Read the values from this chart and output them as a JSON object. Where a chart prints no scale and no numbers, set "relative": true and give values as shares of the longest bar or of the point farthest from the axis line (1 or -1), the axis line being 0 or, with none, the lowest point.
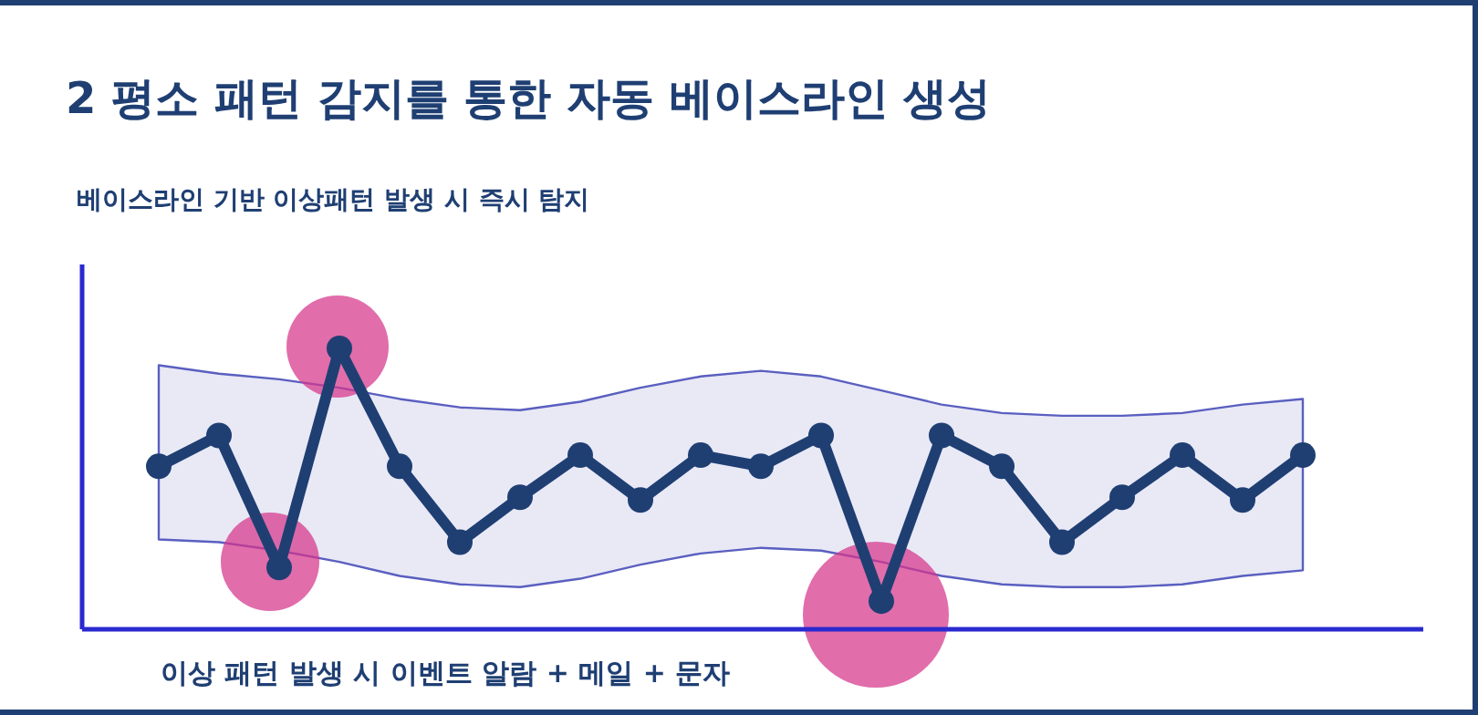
{
  "chart_data": {
    "type": "line",
    "title": "2 평소 패턴 감지를 통한 자동 베이스라인 생성",
    "subtitle": "베이스라인 기반 이상패턴 발생 시 즉시 탐지",
    "annotations": [
      "이상 패턴 발생 시 이벤트 알람 + 메일 + 문자"
    ],
    "relative": true,
    "marker": "circle",
    "categories": [
      null,
      null,
      null,
      null,
      null,
      null,
      null,
      null,
      null,
      null,
      null,
      null,
      null,
      null,
      null,
      null,
      null,
      null,
      null,
      null
    ],
    "series": [
      {
        "color": "#1f3f73",
        "values": [
          0.58,
          0.69,
          0.22,
          1,
          0.58,
          0.31,
          0.47,
          0.62,
          0.46,
          0.62,
          0.58,
          0.69,
          0.1,
          0.69,
          0.58,
          0.31,
          0.47,
          0.62,
          0.46,
          0.62
        ],
        "upper": [
          0.94,
          0.91,
          0.89,
          0.86,
          0.82,
          0.79,
          0.78,
          0.81,
          0.86,
          0.9,
          0.92,
          0.9,
          0.85,
          0.8,
          0.77,
          0.76,
          0.76,
          0.77,
          0.8,
          0.82
        ],
        "lower": [
          0.32,
          0.31,
          0.28,
          0.24,
          0.19,
          0.16,
          0.15,
          0.18,
          0.23,
          0.27,
          0.29,
          0.28,
          0.24,
          0.19,
          0.16,
          0.15,
          0.15,
          0.16,
          0.19,
          0.21
        ]
      }
    ]
  }
}
